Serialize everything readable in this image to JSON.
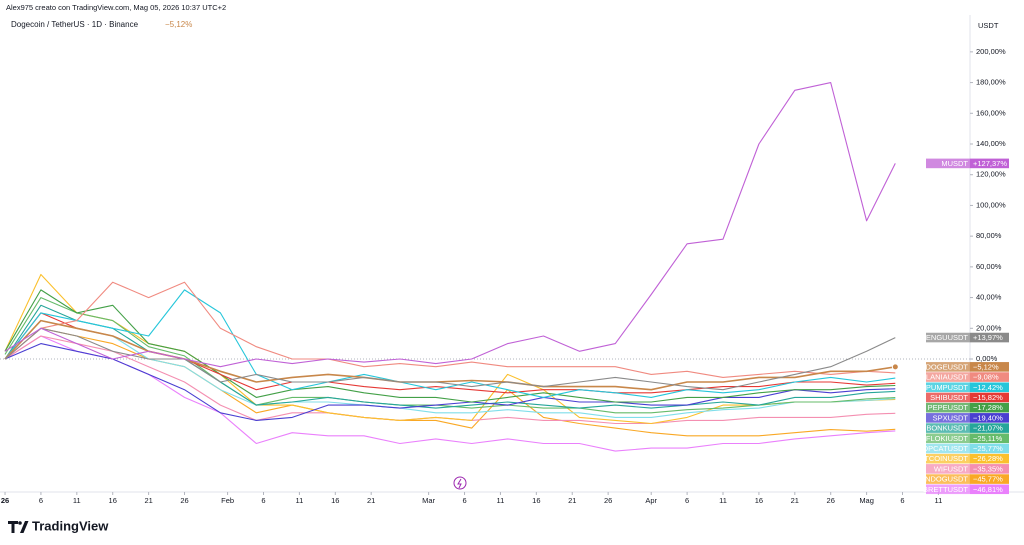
{
  "chart_data": {
    "type": "line",
    "header": "Alex975 creato con TradingView.com, Mag 05, 2026 10:37 UTC+2",
    "title": "Dogecoin / TetherUS · 1D · Binance",
    "change": "−5,12%",
    "y_axis_label": "USDT",
    "brand": "TradingView",
    "x": [
      0,
      5,
      10,
      15,
      20,
      25,
      30,
      35,
      40,
      45,
      50,
      55,
      60,
      65,
      70,
      75,
      80,
      85,
      90,
      95,
      100,
      105,
      110,
      115,
      120,
      124
    ],
    "xlim": [
      -0.7,
      134.4
    ],
    "xticks": [
      {
        "value": 0,
        "label": "26"
      },
      {
        "value": 5,
        "label": "6"
      },
      {
        "value": 10,
        "label": "11"
      },
      {
        "value": 15,
        "label": "16"
      },
      {
        "value": 20,
        "label": "21"
      },
      {
        "value": 25,
        "label": "26"
      },
      {
        "value": 31,
        "label": "Feb"
      },
      {
        "value": 36,
        "label": "6"
      },
      {
        "value": 41,
        "label": "11"
      },
      {
        "value": 46,
        "label": "16"
      },
      {
        "value": 51,
        "label": "21"
      },
      {
        "value": 59,
        "label": "Mar"
      },
      {
        "value": 64,
        "label": "6"
      },
      {
        "value": 69,
        "label": "11"
      },
      {
        "value": 74,
        "label": "16"
      },
      {
        "value": 79,
        "label": "21"
      },
      {
        "value": 84,
        "label": "26"
      },
      {
        "value": 90,
        "label": "Apr"
      },
      {
        "value": 95,
        "label": "6"
      },
      {
        "value": 100,
        "label": "11"
      },
      {
        "value": 105,
        "label": "16"
      },
      {
        "value": 110,
        "label": "21"
      },
      {
        "value": 115,
        "label": "26"
      },
      {
        "value": 120,
        "label": "Mag"
      },
      {
        "value": 125,
        "label": "6"
      },
      {
        "value": 130,
        "label": "11"
      }
    ],
    "ylim": [
      -86.6,
      224
    ],
    "yticks": [
      {
        "value": 0,
        "label": "0,00%"
      },
      {
        "value": 20,
        "label": "20,00%"
      },
      {
        "value": 40,
        "label": "40,00%"
      },
      {
        "value": 60,
        "label": "60,00%"
      },
      {
        "value": 80,
        "label": "80,00%"
      },
      {
        "value": 100,
        "label": "100,00%"
      },
      {
        "value": 120,
        "label": "120,00%"
      },
      {
        "value": 140,
        "label": "140,00%"
      },
      {
        "value": 160,
        "label": "160,00%"
      },
      {
        "value": 180,
        "label": "180,00%"
      },
      {
        "value": 200,
        "label": "200,00%"
      }
    ],
    "grid": false,
    "series": [
      {
        "name": "MUSDT",
        "label": "+127,37%",
        "color": "#c061d6",
        "values": [
          5,
          20,
          10,
          0,
          5,
          0,
          -5,
          0,
          -3,
          0,
          -2,
          0,
          -3,
          0,
          10,
          15,
          5,
          10,
          42,
          75,
          78,
          140,
          175,
          180,
          90,
          127.37
        ]
      },
      {
        "name": "PENGUUSDT",
        "label": "+13,97%",
        "color": "#8a8a8a",
        "values": [
          0,
          20,
          15,
          5,
          0,
          0,
          -15,
          -10,
          -15,
          -15,
          -12,
          -15,
          -15,
          -18,
          -15,
          -18,
          -15,
          -12,
          -15,
          -18,
          -20,
          -15,
          -10,
          -5,
          5,
          13.97
        ]
      },
      {
        "name": "DOGEUSDT",
        "label": "−5,12%",
        "color": "#c8874a",
        "values": [
          0,
          25,
          20,
          15,
          5,
          0,
          -8,
          -15,
          -12,
          -10,
          -12,
          -15,
          -15,
          -14,
          -15,
          -18,
          -18,
          -18,
          -20,
          -15,
          -15,
          -12,
          -12,
          -8,
          -8,
          -5.12
        ]
      },
      {
        "name": "MELANIAUSDT",
        "label": "−9,08%",
        "color": "#f08a80",
        "values": [
          0,
          20,
          25,
          50,
          40,
          50,
          20,
          8,
          0,
          0,
          -5,
          -3,
          -5,
          -2,
          -5,
          -5,
          -5,
          -5,
          -10,
          -8,
          -12,
          -10,
          -8,
          -10,
          -8,
          -9.08
        ]
      },
      {
        "name": "PUMPUSDT",
        "label": "−12,42%",
        "color": "#26c6da",
        "values": [
          0,
          30,
          25,
          20,
          15,
          45,
          30,
          -10,
          -20,
          -15,
          -10,
          -15,
          -20,
          -15,
          -20,
          -25,
          -20,
          -22,
          -25,
          -20,
          -22,
          -20,
          -15,
          -12,
          -15,
          -12.42
        ]
      },
      {
        "name": "SHIBUSDT",
        "label": "−15,82%",
        "color": "#e53935",
        "values": [
          0,
          30,
          20,
          15,
          5,
          0,
          -10,
          -20,
          -15,
          -15,
          -18,
          -20,
          -18,
          -20,
          -22,
          -20,
          -20,
          -22,
          -22,
          -20,
          -18,
          -18,
          -15,
          -15,
          -17,
          -15.82
        ]
      },
      {
        "name": "PEPEUSDT",
        "label": "−17,28%",
        "color": "#43a047",
        "values": [
          5,
          45,
          30,
          35,
          10,
          5,
          -10,
          -25,
          -20,
          -18,
          -22,
          -25,
          -25,
          -28,
          -25,
          -22,
          -25,
          -28,
          -28,
          -25,
          -25,
          -22,
          -20,
          -20,
          -18,
          -17.28
        ]
      },
      {
        "name": "SPXUSDT",
        "label": "−19,40%",
        "color": "#4a3fd1",
        "values": [
          0,
          10,
          5,
          0,
          -10,
          -20,
          -35,
          -40,
          -38,
          -30,
          -30,
          -32,
          -30,
          -28,
          -30,
          -25,
          -28,
          -28,
          -30,
          -30,
          -25,
          -25,
          -20,
          -22,
          -20,
          -19.4
        ]
      },
      {
        "name": "BONKUSDT",
        "label": "−21,07%",
        "color": "#26a69a",
        "values": [
          0,
          35,
          25,
          20,
          5,
          0,
          -15,
          -30,
          -28,
          -25,
          -28,
          -30,
          -32,
          -30,
          -28,
          -30,
          -32,
          -30,
          -32,
          -30,
          -28,
          -30,
          -25,
          -25,
          -22,
          -21.07
        ]
      },
      {
        "name": "FLOKIUSDT",
        "label": "−25,11%",
        "color": "#66bb6a",
        "values": [
          3,
          40,
          30,
          25,
          8,
          2,
          -15,
          -30,
          -25,
          -25,
          -28,
          -30,
          -30,
          -32,
          -30,
          -32,
          -32,
          -35,
          -35,
          -33,
          -32,
          -30,
          -28,
          -28,
          -26,
          -25.11
        ]
      },
      {
        "name": "POPCATUSDT",
        "label": "−25,77%",
        "color": "#80deea",
        "values": [
          0,
          25,
          20,
          15,
          0,
          -5,
          -20,
          -30,
          -28,
          -28,
          -30,
          -32,
          -35,
          -35,
          -33,
          -35,
          -35,
          -38,
          -38,
          -35,
          -33,
          -32,
          -28,
          -28,
          -27,
          -25.77
        ]
      },
      {
        "name": "FARTCOINUSDT",
        "label": "−26,28%",
        "color": "#fbc02d",
        "values": [
          5,
          55,
          30,
          25,
          10,
          5,
          -10,
          -30,
          -30,
          -35,
          -38,
          -40,
          -38,
          -40,
          -10,
          -20,
          -38,
          -40,
          -42,
          -38,
          -30,
          -30,
          -28,
          -28,
          -27,
          -26.28
        ]
      },
      {
        "name": "WIFUSDT",
        "label": "−35,35%",
        "color": "#f48fb1",
        "values": [
          0,
          15,
          10,
          5,
          -5,
          -15,
          -30,
          -40,
          -35,
          -35,
          -38,
          -40,
          -38,
          -40,
          -38,
          -40,
          -40,
          -42,
          -42,
          -40,
          -40,
          -38,
          -38,
          -38,
          -36,
          -35.35
        ]
      },
      {
        "name": "SUNDOGUSDT",
        "label": "−45,77%",
        "color": "#f9a825",
        "values": [
          0,
          20,
          15,
          10,
          0,
          -5,
          -20,
          -35,
          -30,
          -35,
          -38,
          -40,
          -40,
          -45,
          -20,
          -38,
          -42,
          -45,
          -48,
          -50,
          -50,
          -50,
          -48,
          -46,
          -47,
          -45.77
        ]
      },
      {
        "name": "BRETTUSDT",
        "label": "−46,81%",
        "color": "#ea80fc",
        "values": [
          0,
          15,
          5,
          0,
          -10,
          -25,
          -35,
          -55,
          -48,
          -50,
          -50,
          -55,
          -52,
          -55,
          -52,
          -55,
          -55,
          -60,
          -58,
          -58,
          -55,
          -55,
          -52,
          -50,
          -48,
          -46.81
        ]
      }
    ]
  }
}
